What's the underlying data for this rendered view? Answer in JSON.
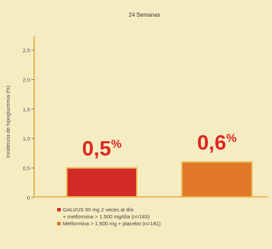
{
  "chart_data": {
    "type": "bar",
    "title": "24 Semanas",
    "ylabel": "Incidencia de hipoglucemia (%)",
    "xlabel": "",
    "ylim": [
      0,
      2.5
    ],
    "yticks": [
      "0",
      "0,5",
      "1,0",
      "1,5",
      "2,0",
      "2,5"
    ],
    "categories": [
      "GALVUS 50 mg 2 veces al día\n+ metformina > 1.500 mg/día (n=183)",
      "Metformina > 1.500 mg + placebo (n=181)"
    ],
    "values": [
      0.5,
      0.6
    ],
    "value_labels": [
      "0,5",
      "0,6"
    ],
    "value_unit": "%",
    "colors": [
      "#d42a26",
      "#e07828"
    ],
    "label_color": "#e1261f",
    "axis_color": "#e3a93a",
    "legend_position": "bottom"
  }
}
